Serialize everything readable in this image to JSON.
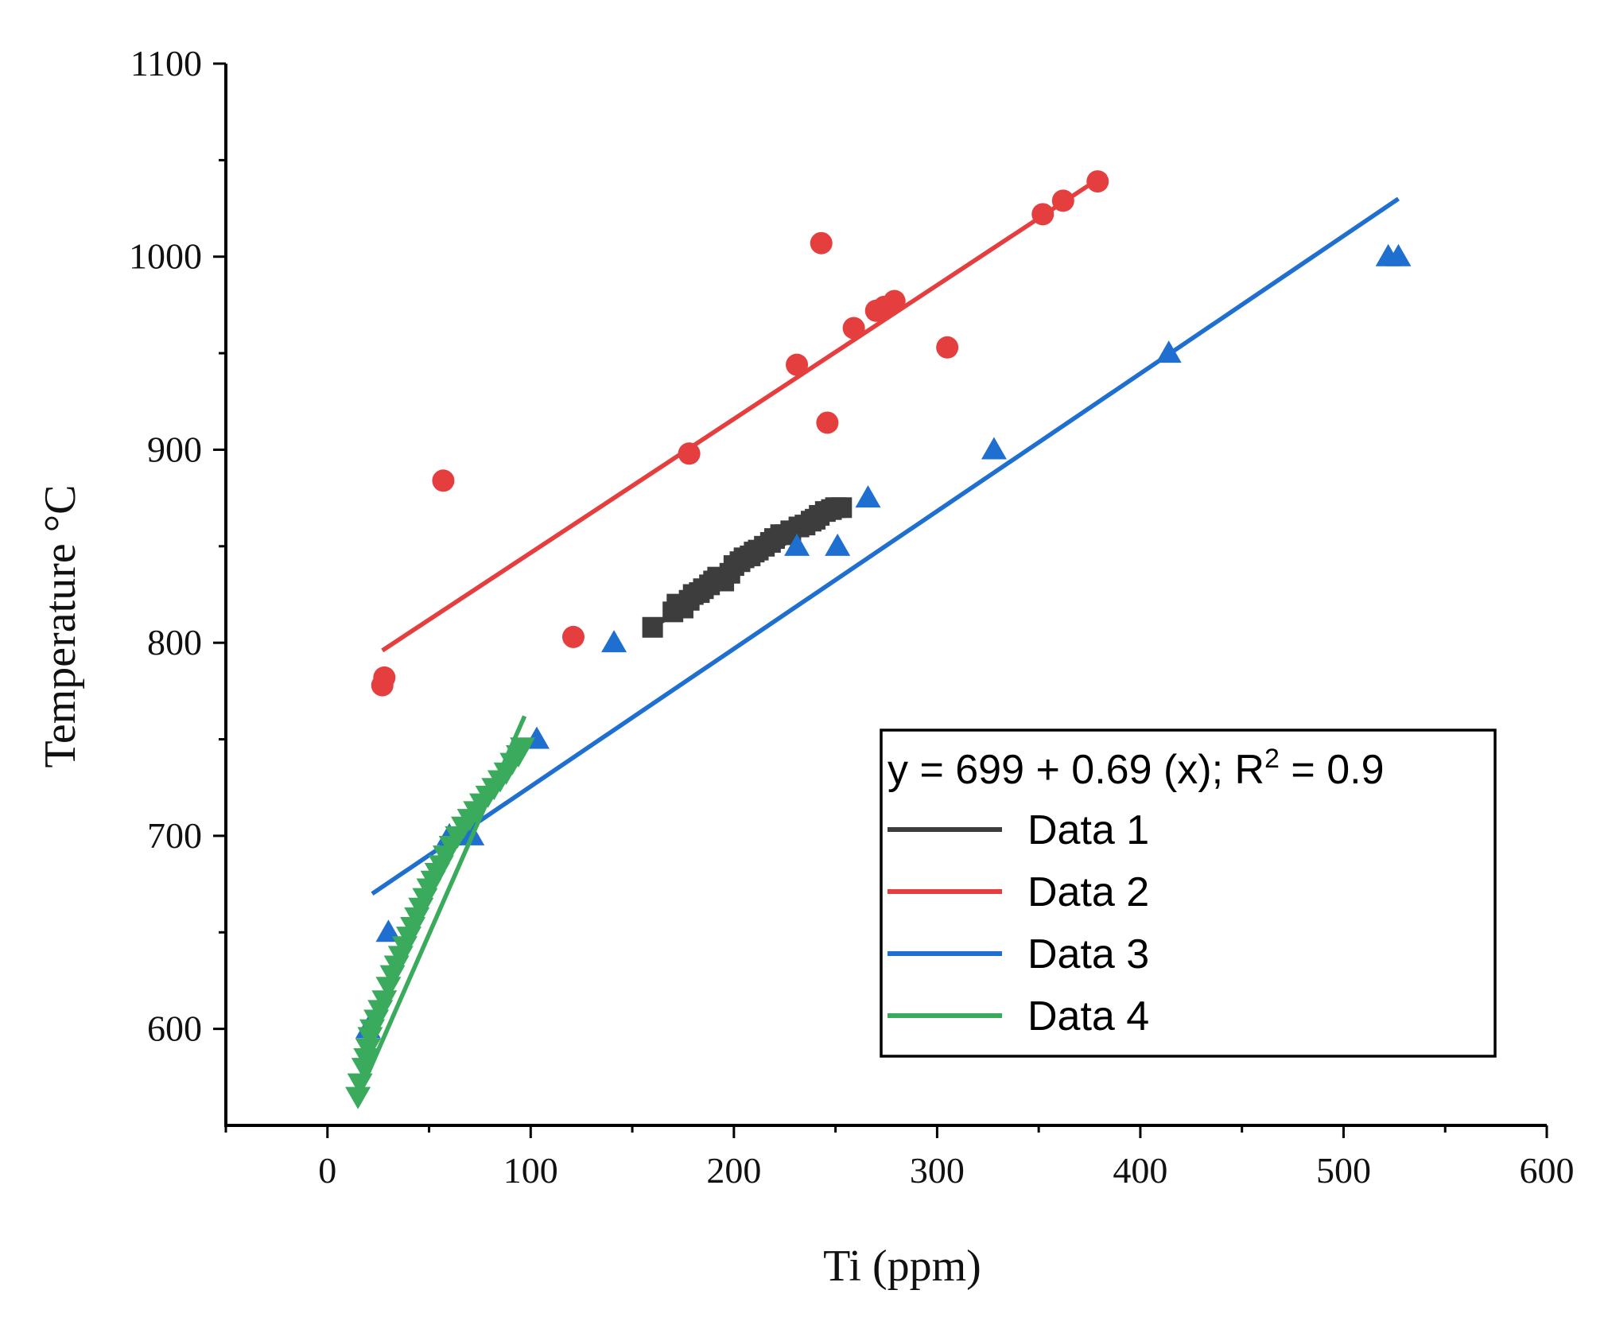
{
  "chart_data": {
    "type": "scatter",
    "title": "",
    "xlabel": "Ti (ppm)",
    "ylabel": "Temperature  °C",
    "xlim": [
      -50,
      600
    ],
    "ylim": [
      550,
      1100
    ],
    "xticks": [
      0,
      100,
      200,
      300,
      400,
      500,
      600
    ],
    "yticks": [
      600,
      700,
      800,
      900,
      1000,
      1100
    ],
    "x_tick_labels": [
      "0",
      "100",
      "200",
      "300",
      "400",
      "500",
      "600"
    ],
    "y_tick_labels": [
      "600",
      "700",
      "800",
      "900",
      "1000",
      "1100"
    ],
    "legend": {
      "position": "bottom-right",
      "equation_prefix": "y = 699 + 0.69 (x); R",
      "equation_superscript": "2",
      "equation_suffix": " = 0.9",
      "entries": [
        "Data 1",
        "Data 2",
        "Data 3",
        "Data 4"
      ]
    },
    "series": [
      {
        "name": "Data 1",
        "color": "#3d3d3d",
        "marker": "square",
        "points": [
          [
            160,
            808
          ],
          [
            170,
            816
          ],
          [
            172,
            820
          ],
          [
            175,
            818
          ],
          [
            178,
            822
          ],
          [
            180,
            825
          ],
          [
            183,
            826
          ],
          [
            185,
            828
          ],
          [
            188,
            830
          ],
          [
            190,
            832
          ],
          [
            192,
            834
          ],
          [
            195,
            832
          ],
          [
            198,
            836
          ],
          [
            200,
            840
          ],
          [
            203,
            842
          ],
          [
            205,
            844
          ],
          [
            208,
            845
          ],
          [
            210,
            847
          ],
          [
            212,
            848
          ],
          [
            215,
            850
          ],
          [
            218,
            852
          ],
          [
            220,
            854
          ],
          [
            223,
            856
          ],
          [
            225,
            856
          ],
          [
            228,
            858
          ],
          [
            232,
            860
          ],
          [
            235,
            861
          ],
          [
            238,
            863
          ],
          [
            240,
            864
          ],
          [
            242,
            866
          ],
          [
            245,
            868
          ],
          [
            248,
            869
          ],
          [
            250,
            870
          ],
          [
            253,
            870
          ]
        ],
        "fit": [
          [
            160,
            808
          ],
          [
            253,
            870
          ]
        ]
      },
      {
        "name": "Data 2",
        "color": "#e53e3e",
        "marker": "circle",
        "points": [
          [
            27,
            778
          ],
          [
            28,
            782
          ],
          [
            57,
            884
          ],
          [
            121,
            803
          ],
          [
            178,
            898
          ],
          [
            231,
            944
          ],
          [
            243,
            1007
          ],
          [
            246,
            914
          ],
          [
            259,
            963
          ],
          [
            270,
            972
          ],
          [
            274,
            974
          ],
          [
            279,
            977
          ],
          [
            305,
            953
          ],
          [
            352,
            1022
          ],
          [
            362,
            1029
          ],
          [
            379,
            1039
          ]
        ],
        "fit": [
          [
            27,
            796
          ],
          [
            379,
            1040
          ]
        ]
      },
      {
        "name": "Data 3",
        "color": "#1e6fd0",
        "marker": "triangle-up",
        "points": [
          [
            20,
            600
          ],
          [
            30,
            650
          ],
          [
            60,
            700
          ],
          [
            71,
            700
          ],
          [
            103,
            750
          ],
          [
            141,
            800
          ],
          [
            231,
            850
          ],
          [
            251,
            850
          ],
          [
            266,
            875
          ],
          [
            328,
            900
          ],
          [
            414,
            950
          ],
          [
            522,
            1000
          ],
          [
            527,
            1000
          ]
        ],
        "fit": [
          [
            22,
            670
          ],
          [
            527,
            1030
          ]
        ]
      },
      {
        "name": "Data 4",
        "color": "#3aaa5c",
        "marker": "triangle-down",
        "points": [
          [
            15,
            565
          ],
          [
            16,
            572
          ],
          [
            18,
            580
          ],
          [
            19,
            585
          ],
          [
            20,
            590
          ],
          [
            21,
            596
          ],
          [
            22,
            600
          ],
          [
            24,
            605
          ],
          [
            26,
            610
          ],
          [
            28,
            615
          ],
          [
            30,
            622
          ],
          [
            32,
            628
          ],
          [
            34,
            633
          ],
          [
            36,
            638
          ],
          [
            38,
            643
          ],
          [
            40,
            648
          ],
          [
            42,
            653
          ],
          [
            44,
            658
          ],
          [
            46,
            663
          ],
          [
            48,
            668
          ],
          [
            50,
            673
          ],
          [
            52,
            677
          ],
          [
            54,
            681
          ],
          [
            56,
            685
          ],
          [
            58,
            690
          ],
          [
            61,
            695
          ],
          [
            64,
            700
          ],
          [
            67,
            705
          ],
          [
            70,
            709
          ],
          [
            73,
            713
          ],
          [
            76,
            717
          ],
          [
            79,
            721
          ],
          [
            82,
            725
          ],
          [
            85,
            729
          ],
          [
            88,
            733
          ],
          [
            91,
            738
          ],
          [
            94,
            742
          ],
          [
            96,
            746
          ]
        ],
        "fit": [
          [
            15,
            565
          ],
          [
            97,
            762
          ]
        ]
      }
    ]
  }
}
